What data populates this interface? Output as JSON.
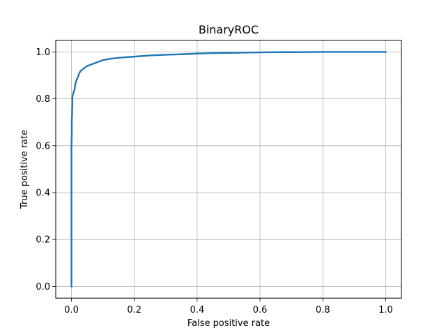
{
  "chart_data": {
    "type": "line",
    "title": "BinaryROC",
    "xlabel": "False positive rate",
    "ylabel": "True positive rate",
    "xlim": [
      -0.05,
      1.05
    ],
    "ylim": [
      -0.05,
      1.05
    ],
    "xticks": [
      0.0,
      0.2,
      0.4,
      0.6,
      0.8,
      1.0
    ],
    "yticks": [
      0.0,
      0.2,
      0.4,
      0.6,
      0.8,
      1.0
    ],
    "xtick_labels": [
      "0.0",
      "0.2",
      "0.4",
      "0.6",
      "0.8",
      "1.0"
    ],
    "ytick_labels": [
      "0.0",
      "0.2",
      "0.4",
      "0.6",
      "0.8",
      "1.0"
    ],
    "grid": true,
    "series": [
      {
        "color": "#1f77b4",
        "x": [
          0.0,
          0.0,
          0.0,
          0.001,
          0.001,
          0.002,
          0.003,
          0.003,
          0.005,
          0.007,
          0.01,
          0.012,
          0.016,
          0.02,
          0.025,
          0.03,
          0.04,
          0.05,
          0.06,
          0.08,
          0.1,
          0.12,
          0.15,
          0.2,
          0.25,
          0.3,
          0.35,
          0.4,
          0.45,
          0.5,
          0.55,
          0.6,
          0.65,
          0.7,
          0.8,
          0.9,
          1.0
        ],
        "y": [
          0.0,
          0.3,
          0.6,
          0.65,
          0.7,
          0.74,
          0.78,
          0.81,
          0.82,
          0.83,
          0.84,
          0.86,
          0.88,
          0.89,
          0.91,
          0.92,
          0.93,
          0.94,
          0.945,
          0.955,
          0.965,
          0.97,
          0.975,
          0.98,
          0.985,
          0.988,
          0.99,
          0.993,
          0.995,
          0.996,
          0.997,
          0.998,
          0.999,
          0.999,
          1.0,
          1.0,
          1.0
        ]
      }
    ]
  }
}
